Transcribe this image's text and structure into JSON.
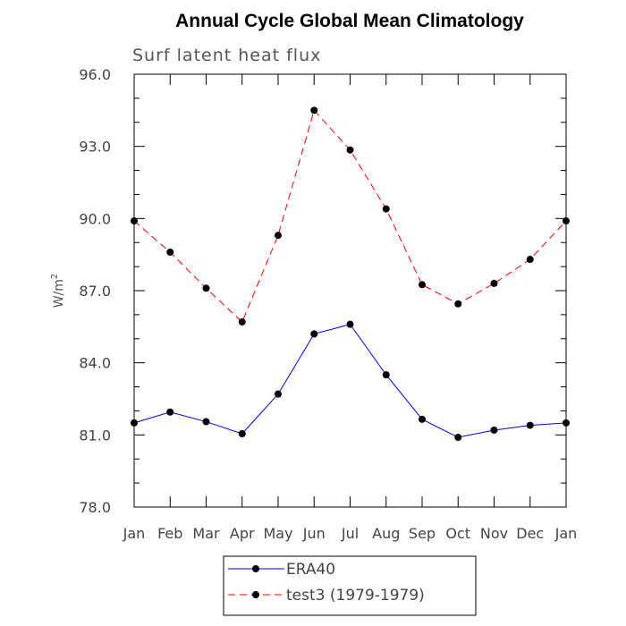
{
  "chart_data": {
    "type": "line",
    "title": "Annual Cycle Global Mean Climatology",
    "subtitle": "Surf latent heat flux",
    "ylabel": "W/m",
    "ylabel_sup": "2",
    "xlabel": "",
    "categories": [
      "Jan",
      "Feb",
      "Mar",
      "Apr",
      "May",
      "Jun",
      "Jul",
      "Aug",
      "Sep",
      "Oct",
      "Nov",
      "Dec",
      "Jan"
    ],
    "ylim": [
      78.0,
      96.0
    ],
    "yticks": [
      "78.0",
      "81.0",
      "84.0",
      "87.0",
      "90.0",
      "93.0",
      "96.0"
    ],
    "grid": false,
    "legend_position": "bottom-center",
    "series": [
      {
        "name": "ERA40",
        "color": "#0000ff",
        "dash": "solid",
        "marker": "circle",
        "values": [
          81.5,
          81.95,
          81.55,
          81.05,
          82.7,
          85.2,
          85.6,
          83.5,
          81.65,
          80.9,
          81.2,
          81.4,
          81.5
        ]
      },
      {
        "name": "test3 (1979-1979)",
        "color": "#ff0000",
        "dash": "dashed",
        "marker": "circle",
        "values": [
          89.9,
          88.6,
          87.1,
          85.7,
          89.3,
          94.5,
          92.85,
          90.4,
          87.25,
          86.45,
          87.3,
          88.3,
          89.9
        ]
      }
    ]
  }
}
